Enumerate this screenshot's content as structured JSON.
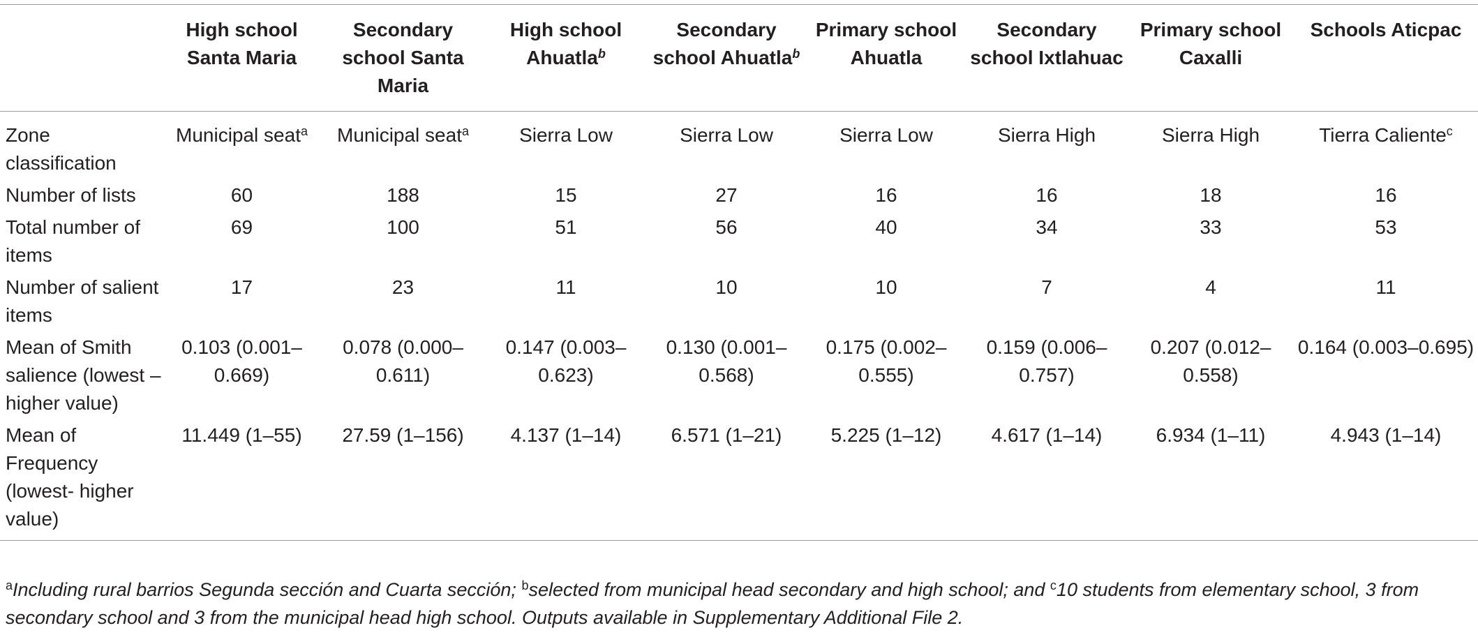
{
  "columns": [
    {
      "label": "",
      "sup": ""
    },
    {
      "label": "High school Santa Maria",
      "sup": ""
    },
    {
      "label": "Secondary school Santa Maria",
      "sup": ""
    },
    {
      "label": "High school Ahuatla",
      "sup": "b"
    },
    {
      "label": "Secondary school Ahuatla",
      "sup": "b"
    },
    {
      "label": "Primary school Ahuatla",
      "sup": ""
    },
    {
      "label": "Secondary school Ixtlahuac",
      "sup": ""
    },
    {
      "label": "Primary school Caxalli",
      "sup": ""
    },
    {
      "label": "Schools Aticpac",
      "sup": ""
    }
  ],
  "zone_row": {
    "label": "Zone classification",
    "values": [
      {
        "text": "Municipal seat",
        "sup": "a"
      },
      {
        "text": "Municipal seat",
        "sup": "a"
      },
      {
        "text": "Sierra Low",
        "sup": ""
      },
      {
        "text": "Sierra Low",
        "sup": ""
      },
      {
        "text": "Sierra Low",
        "sup": ""
      },
      {
        "text": "Sierra High",
        "sup": ""
      },
      {
        "text": "Sierra High",
        "sup": ""
      },
      {
        "text": "Tierra Caliente",
        "sup": "c"
      }
    ]
  },
  "rows": [
    {
      "label": "Number of lists",
      "values": [
        "60",
        "188",
        "15",
        "27",
        "16",
        "16",
        "18",
        "16"
      ]
    },
    {
      "label": "Total number of items",
      "values": [
        "69",
        "100",
        "51",
        "56",
        "40",
        "34",
        "33",
        "53"
      ]
    },
    {
      "label": "Number of salient items",
      "values": [
        "17",
        "23",
        "11",
        "10",
        "10",
        "7",
        "4",
        "11"
      ]
    },
    {
      "label": "Mean of Smith salience (lowest – higher value)",
      "values": [
        "0.103 (0.001–0.669)",
        "0.078 (0.000–0.611)",
        "0.147 (0.003–0.623)",
        "0.130 (0.001–0.568)",
        "0.175 (0.002–0.555)",
        "0.159 (0.006–0.757)",
        "0.207 (0.012–0.558)",
        "0.164 (0.003–0.695)"
      ]
    },
    {
      "label": "Mean of Frequency (lowest- higher value)",
      "values": [
        "11.449 (1–55)",
        "27.59 (1–156)",
        "4.137 (1–14)",
        "6.571 (1–21)",
        "5.225 (1–12)",
        "4.617 (1–14)",
        "6.934 (1–11)",
        "4.943 (1–14)"
      ]
    }
  ],
  "footnote": {
    "a_sup": "a",
    "a_text": "Including rural barrios Segunda sección and Cuarta sección; ",
    "b_sup": "b",
    "b_text": "selected from municipal head secondary and high school; and ",
    "c_sup": "c",
    "c_text": "10 students from elementary school, 3 from secondary school and 3 from the municipal head high school. Outputs available in Supplementary Additional File 2."
  }
}
